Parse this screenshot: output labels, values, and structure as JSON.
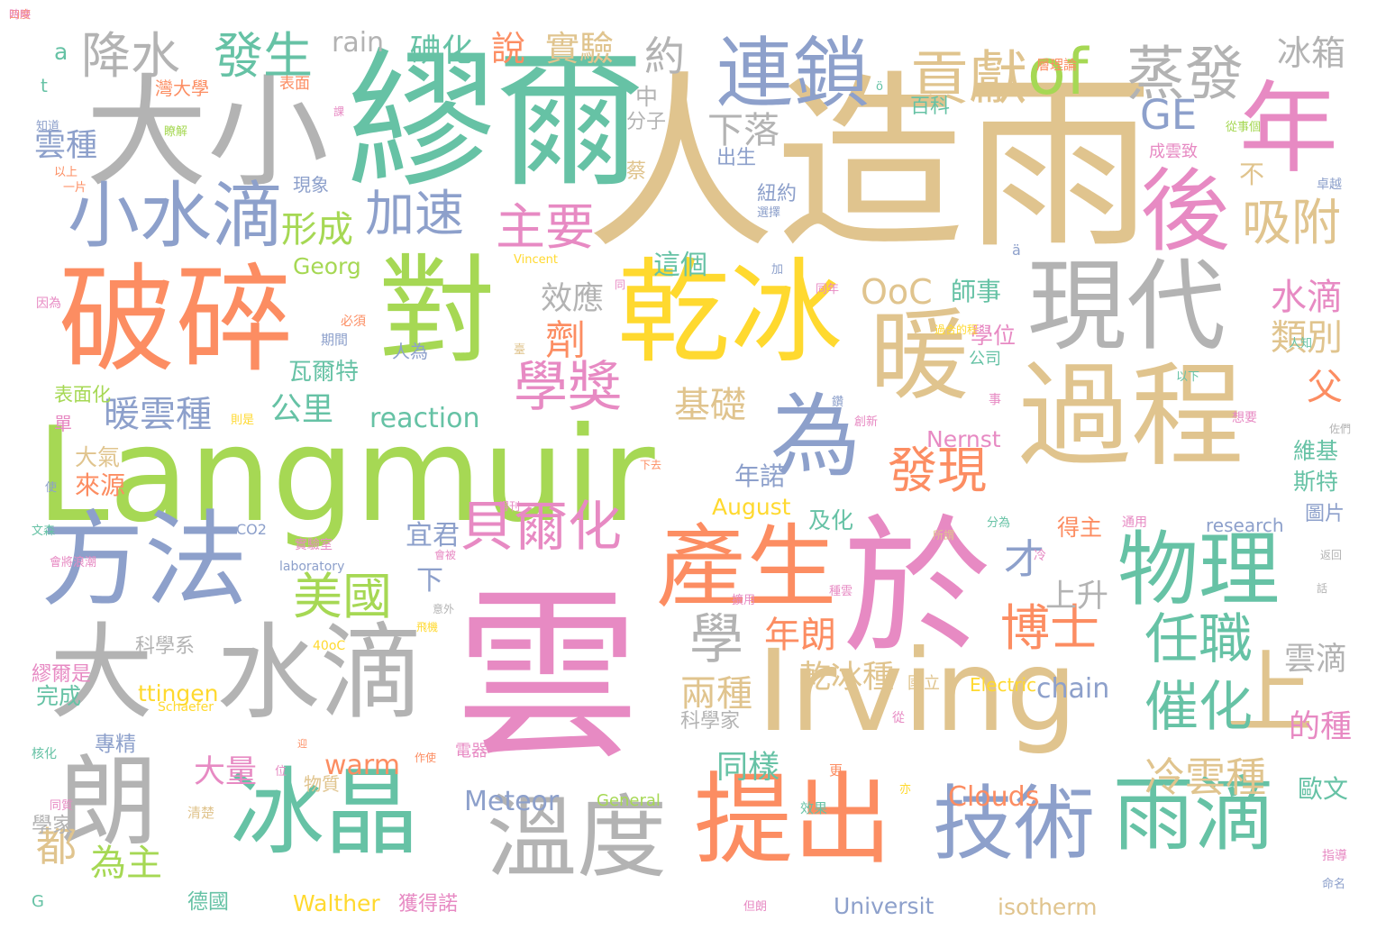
{
  "palette": {
    "tan": "#e0c48e",
    "green": "#66c2a5",
    "orange": "#fc8d62",
    "blue": "#8da0cb",
    "pink": "#e78ac3",
    "lime": "#a6d854",
    "yellow": "#ffd92f",
    "gray": "#b3b3b3"
  },
  "words": [
    {
      "t": "雲",
      "c": "pink"
    },
    {
      "t": "人造雨",
      "c": "tan"
    },
    {
      "t": "繆爾",
      "c": "green"
    },
    {
      "t": "Langmuir",
      "c": "lime"
    },
    {
      "t": "Irving",
      "c": "tan"
    },
    {
      "t": "大小",
      "c": "gray"
    },
    {
      "t": "於",
      "c": "pink"
    },
    {
      "t": "對",
      "c": "lime"
    },
    {
      "t": "破碎",
      "c": "orange"
    },
    {
      "t": "乾冰",
      "c": "yellow"
    },
    {
      "t": "過程",
      "c": "tan"
    },
    {
      "t": "現代",
      "c": "gray"
    },
    {
      "t": "暖",
      "c": "tan"
    },
    {
      "t": "年",
      "c": "pink"
    },
    {
      "t": "後",
      "c": "pink"
    },
    {
      "t": "方法",
      "c": "blue"
    },
    {
      "t": "大",
      "c": "gray"
    },
    {
      "t": "水滴",
      "c": "gray"
    },
    {
      "t": "朗",
      "c": "gray"
    },
    {
      "t": "冰晶",
      "c": "green"
    },
    {
      "t": "溫度",
      "c": "gray"
    },
    {
      "t": "提出",
      "c": "orange"
    },
    {
      "t": "技術",
      "c": "blue"
    },
    {
      "t": "雨滴",
      "c": "green"
    },
    {
      "t": "產生",
      "c": "orange"
    },
    {
      "t": "物理",
      "c": "green"
    },
    {
      "t": "上",
      "c": "tan"
    },
    {
      "t": "為",
      "c": "blue"
    },
    {
      "t": "連鎖",
      "c": "blue"
    },
    {
      "t": "of",
      "c": "lime"
    },
    {
      "t": "小水滴",
      "c": "blue"
    },
    {
      "t": "貢獻",
      "c": "tan"
    },
    {
      "t": "蒸發",
      "c": "gray"
    },
    {
      "t": "降水",
      "c": "gray"
    },
    {
      "t": "發生",
      "c": "green"
    },
    {
      "t": "GE",
      "c": "blue"
    },
    {
      "t": "吸附",
      "c": "tan"
    },
    {
      "t": "學獎",
      "c": "pink"
    },
    {
      "t": "貝爾化",
      "c": "pink"
    },
    {
      "t": "發現",
      "c": "orange"
    },
    {
      "t": "加速",
      "c": "blue"
    },
    {
      "t": "主要",
      "c": "pink"
    },
    {
      "t": "美國",
      "c": "lime"
    },
    {
      "t": "博士",
      "c": "orange"
    },
    {
      "t": "任職",
      "c": "green"
    },
    {
      "t": "催化",
      "c": "green"
    },
    {
      "t": "學",
      "c": "gray"
    },
    {
      "t": "冰箱",
      "c": "gray"
    },
    {
      "t": "實驗",
      "c": "tan"
    },
    {
      "t": "說",
      "c": "orange"
    },
    {
      "t": "約",
      "c": "gray"
    },
    {
      "t": "rain",
      "c": "gray"
    },
    {
      "t": "碘化",
      "c": "green"
    },
    {
      "t": "下落",
      "c": "gray"
    },
    {
      "t": "形成",
      "c": "lime"
    },
    {
      "t": "OoC",
      "c": "tan"
    },
    {
      "t": "水滴",
      "c": "pink"
    },
    {
      "t": "類別",
      "c": "tan"
    },
    {
      "t": "劑",
      "c": "orange"
    },
    {
      "t": "效應",
      "c": "gray"
    },
    {
      "t": "父",
      "c": "orange"
    },
    {
      "t": "暖雲種",
      "c": "blue"
    },
    {
      "t": "基礎",
      "c": "tan"
    },
    {
      "t": "公里",
      "c": "green"
    },
    {
      "t": "reaction",
      "c": "green"
    },
    {
      "t": "年朗",
      "c": "orange"
    },
    {
      "t": "上升",
      "c": "gray"
    },
    {
      "t": "乾冰種",
      "c": "tan"
    },
    {
      "t": "兩種",
      "c": "tan"
    },
    {
      "t": "冷雲種",
      "c": "tan"
    },
    {
      "t": "雲滴",
      "c": "gray"
    },
    {
      "t": "chain",
      "c": "blue"
    },
    {
      "t": "大量",
      "c": "pink"
    },
    {
      "t": "warm",
      "c": "orange"
    },
    {
      "t": "Meteor",
      "c": "blue"
    },
    {
      "t": "Clouds",
      "c": "orange"
    },
    {
      "t": "同樣",
      "c": "green"
    },
    {
      "t": "為主",
      "c": "lime"
    },
    {
      "t": "都",
      "c": "tan"
    },
    {
      "t": "的種",
      "c": "pink"
    },
    {
      "t": "歐文",
      "c": "green"
    },
    {
      "t": "這個",
      "c": "green"
    },
    {
      "t": "師事",
      "c": "green"
    },
    {
      "t": "學位",
      "c": "pink"
    },
    {
      "t": "才",
      "c": "blue"
    },
    {
      "t": "宜君",
      "c": "blue"
    },
    {
      "t": "下",
      "c": "blue"
    },
    {
      "t": "年諾",
      "c": "blue"
    },
    {
      "t": "August",
      "c": "yellow"
    },
    {
      "t": "及化",
      "c": "green"
    },
    {
      "t": "Georg",
      "c": "lime"
    },
    {
      "t": "瓦爾特",
      "c": "green"
    },
    {
      "t": "雲種",
      "c": "blue"
    },
    {
      "t": "來源",
      "c": "orange"
    },
    {
      "t": "大氣",
      "c": "tan"
    },
    {
      "t": "Universit",
      "c": "blue"
    },
    {
      "t": "isotherm",
      "c": "tan"
    },
    {
      "t": "Walther",
      "c": "yellow"
    },
    {
      "t": "德國",
      "c": "green"
    },
    {
      "t": "獲得諾",
      "c": "pink"
    },
    {
      "t": "Nernst",
      "c": "pink"
    },
    {
      "t": "research",
      "c": "blue"
    },
    {
      "t": "General",
      "c": "lime"
    },
    {
      "t": "斯特",
      "c": "green"
    },
    {
      "t": "維基",
      "c": "green"
    },
    {
      "t": "圖片",
      "c": "blue"
    },
    {
      "t": "得主",
      "c": "orange"
    },
    {
      "t": "ttingen",
      "c": "yellow"
    },
    {
      "t": "完成",
      "c": "green"
    },
    {
      "t": "專精",
      "c": "blue"
    },
    {
      "t": "學家",
      "c": "gray"
    },
    {
      "t": "繆爾是",
      "c": "pink"
    },
    {
      "t": "科學系",
      "c": "gray"
    },
    {
      "t": "科學家",
      "c": "gray"
    },
    {
      "t": "物質",
      "c": "tan"
    },
    {
      "t": "表面化",
      "c": "lime"
    },
    {
      "t": "單",
      "c": "pink"
    },
    {
      "t": "現象",
      "c": "blue"
    },
    {
      "t": "出生",
      "c": "blue"
    },
    {
      "t": "紐約",
      "c": "blue"
    },
    {
      "t": "百科",
      "c": "green"
    },
    {
      "t": "中",
      "c": "gray"
    },
    {
      "t": "分子",
      "c": "gray"
    },
    {
      "t": "蔡",
      "c": "tan"
    },
    {
      "t": "不",
      "c": "tan"
    },
    {
      "t": "a",
      "c": "green"
    },
    {
      "t": "t",
      "c": "green"
    },
    {
      "t": "灣大學",
      "c": "orange"
    },
    {
      "t": "表面",
      "c": "orange"
    },
    {
      "t": "層理論",
      "c": "orange"
    },
    {
      "t": "成雲致",
      "c": "pink"
    },
    {
      "t": "Electric",
      "c": "yellow"
    },
    {
      "t": "國立",
      "c": "tan"
    },
    {
      "t": "G",
      "c": "green"
    },
    {
      "t": "電器",
      "c": "pink"
    },
    {
      "t": "公司",
      "c": "green"
    },
    {
      "t": "卓越",
      "c": "blue"
    },
    {
      "t": "通用",
      "c": "pink"
    },
    {
      "t": "40oC",
      "c": "yellow"
    },
    {
      "t": "CO2",
      "c": "blue"
    },
    {
      "t": "laboratory",
      "c": "blue"
    },
    {
      "t": "Schaefer",
      "c": "yellow"
    },
    {
      "t": "Vincent",
      "c": "yellow"
    },
    {
      "t": "實驗室",
      "c": "pink"
    },
    {
      "t": "文森",
      "c": "green"
    },
    {
      "t": "選擇",
      "c": "blue"
    },
    {
      "t": "知道",
      "c": "blue"
    },
    {
      "t": "以上",
      "c": "orange"
    },
    {
      "t": "一片",
      "c": "orange"
    },
    {
      "t": "瞭解",
      "c": "lime"
    },
    {
      "t": "從事個",
      "c": "lime"
    },
    {
      "t": "以下",
      "c": "green"
    },
    {
      "t": "人知",
      "c": "green"
    },
    {
      "t": "指導",
      "c": "pink"
    },
    {
      "t": "命名",
      "c": "blue"
    },
    {
      "t": "則是",
      "c": "yellow"
    },
    {
      "t": "期間",
      "c": "blue"
    },
    {
      "t": "必須",
      "c": "orange"
    },
    {
      "t": "因為",
      "c": "pink"
    },
    {
      "t": "同年",
      "c": "pink"
    },
    {
      "t": "事",
      "c": "pink"
    },
    {
      "t": "創新",
      "c": "pink"
    },
    {
      "t": "鑽",
      "c": "blue"
    },
    {
      "t": "想要",
      "c": "pink"
    },
    {
      "t": "同質",
      "c": "pink"
    },
    {
      "t": "清楚",
      "c": "tan"
    },
    {
      "t": "效果",
      "c": "green"
    },
    {
      "t": "更",
      "c": "orange"
    },
    {
      "t": "亦",
      "c": "yellow"
    },
    {
      "t": "但朗",
      "c": "pink"
    },
    {
      "t": "核化",
      "c": "green"
    },
    {
      "t": "會將浪潮",
      "c": "pink"
    },
    {
      "t": "使",
      "c": "blue"
    },
    {
      "t": "位",
      "c": "pink"
    },
    {
      "t": "作使",
      "c": "orange"
    },
    {
      "t": "冷",
      "c": "pink"
    },
    {
      "t": "分為",
      "c": "green"
    },
    {
      "t": "所謂",
      "c": "tan"
    },
    {
      "t": "返回",
      "c": "gray"
    },
    {
      "t": "話",
      "c": "gray"
    },
    {
      "t": "擴用",
      "c": "pink"
    },
    {
      "t": "種雲",
      "c": "pink"
    },
    {
      "t": "意外",
      "c": "gray"
    },
    {
      "t": "飛機",
      "c": "yellow"
    },
    {
      "t": "會被",
      "c": "pink"
    },
    {
      "t": "從",
      "c": "pink"
    },
    {
      "t": "人為",
      "c": "blue"
    },
    {
      "t": "ä",
      "c": "blue"
    },
    {
      "t": "ö",
      "c": "green"
    },
    {
      "t": "臺",
      "c": "tan"
    },
    {
      "t": "佐們",
      "c": "gray"
    },
    {
      "t": "得刊",
      "c": "pink"
    },
    {
      "t": "下去",
      "c": "orange"
    },
    {
      "t": "同",
      "c": "pink"
    },
    {
      "t": "課",
      "c": "pink"
    },
    {
      "t": "加",
      "c": "blue"
    },
    {
      "t": "迎",
      "c": "orange"
    },
    {
      "t": "過合的程",
      "c": "yellow"
    },
    {
      "t": "四度",
      "c": "orange"
    },
    {
      "t": "時映",
      "c": "pink"
    }
  ]
}
